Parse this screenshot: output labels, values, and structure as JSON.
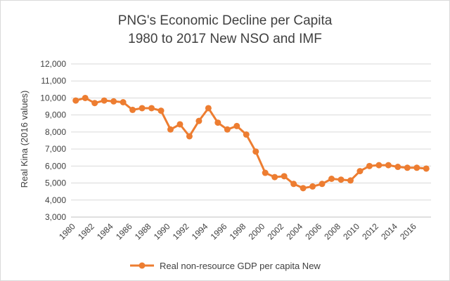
{
  "chart_data": {
    "type": "line",
    "title": [
      "PNG's Economic Decline  per Capita",
      "1980 to 2017 New NSO and IMF"
    ],
    "xlabel": "",
    "ylabel": "Real Kina (2016 values)",
    "ylim": [
      3000,
      12000
    ],
    "yticks": [
      "3,000",
      "4,000",
      "5,000",
      "6,000",
      "7,000",
      "8,000",
      "9,000",
      "10,000",
      "11,000",
      "12,000"
    ],
    "xticks": [
      "1980",
      "1982",
      "1984",
      "1986",
      "1988",
      "1990",
      "1992",
      "1994",
      "1996",
      "1998",
      "2000",
      "2002",
      "2004",
      "2006",
      "2008",
      "2010",
      "2012",
      "2014",
      "2016"
    ],
    "grid": true,
    "legend": "bottom",
    "x": [
      1980,
      1981,
      1982,
      1983,
      1984,
      1985,
      1986,
      1987,
      1988,
      1989,
      1990,
      1991,
      1992,
      1993,
      1994,
      1995,
      1996,
      1997,
      1998,
      1999,
      2000,
      2001,
      2002,
      2003,
      2004,
      2005,
      2006,
      2007,
      2008,
      2009,
      2010,
      2011,
      2012,
      2013,
      2014,
      2015,
      2016,
      2017
    ],
    "series": [
      {
        "name": "Real non-resource GDP per capita New",
        "color": "#ed7d31",
        "values": [
          9850,
          10000,
          9700,
          9850,
          9800,
          9750,
          9300,
          9400,
          9400,
          9250,
          8150,
          8450,
          7750,
          8650,
          9400,
          8550,
          8150,
          8350,
          7850,
          6850,
          5600,
          5350,
          5400,
          4950,
          4700,
          4800,
          4950,
          5250,
          5200,
          5150,
          5700,
          6000,
          6050,
          6050,
          5950,
          5900,
          5900,
          5850
        ]
      }
    ]
  }
}
